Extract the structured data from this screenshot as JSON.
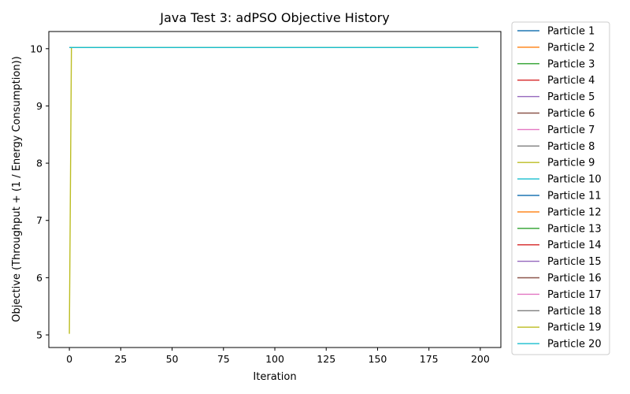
{
  "chart_data": {
    "type": "line",
    "title": "Java Test 3: adPSO Objective History",
    "xlabel": "Iteration",
    "ylabel": "Objective (Throughput + (1 / Energy Consumption))",
    "xlim": [
      -10,
      210
    ],
    "ylim": [
      4.78,
      10.3
    ],
    "xticks": [
      0,
      25,
      50,
      75,
      100,
      125,
      150,
      175,
      200
    ],
    "yticks": [
      5,
      6,
      7,
      8,
      9,
      10
    ],
    "grid": false,
    "legend_position": "outside-right",
    "x": [
      0,
      1,
      2,
      5,
      10,
      25,
      50,
      75,
      100,
      125,
      150,
      175,
      199
    ],
    "series": [
      {
        "name": "Particle 1",
        "color": "#1f77b4",
        "values": [
          10.02,
          10.02,
          10.02,
          10.02,
          10.02,
          10.02,
          10.02,
          10.02,
          10.02,
          10.02,
          10.02,
          10.02,
          10.02
        ]
      },
      {
        "name": "Particle 2",
        "color": "#ff7f0e",
        "values": [
          10.02,
          10.02,
          10.02,
          10.02,
          10.02,
          10.02,
          10.02,
          10.02,
          10.02,
          10.02,
          10.02,
          10.02,
          10.02
        ]
      },
      {
        "name": "Particle 3",
        "color": "#2ca02c",
        "values": [
          10.02,
          10.02,
          10.02,
          10.02,
          10.02,
          10.02,
          10.02,
          10.02,
          10.02,
          10.02,
          10.02,
          10.02,
          10.02
        ]
      },
      {
        "name": "Particle 4",
        "color": "#d62728",
        "values": [
          10.02,
          10.02,
          10.02,
          10.02,
          10.02,
          10.02,
          10.02,
          10.02,
          10.02,
          10.02,
          10.02,
          10.02,
          10.02
        ]
      },
      {
        "name": "Particle 5",
        "color": "#9467bd",
        "values": [
          10.02,
          10.02,
          10.02,
          10.02,
          10.02,
          10.02,
          10.02,
          10.02,
          10.02,
          10.02,
          10.02,
          10.02,
          10.02
        ]
      },
      {
        "name": "Particle 6",
        "color": "#8c564b",
        "values": [
          10.02,
          10.02,
          10.02,
          10.02,
          10.02,
          10.02,
          10.02,
          10.02,
          10.02,
          10.02,
          10.02,
          10.02,
          10.02
        ]
      },
      {
        "name": "Particle 7",
        "color": "#e377c2",
        "values": [
          10.02,
          10.02,
          10.02,
          10.02,
          10.02,
          10.02,
          10.02,
          10.02,
          10.02,
          10.02,
          10.02,
          10.02,
          10.02
        ]
      },
      {
        "name": "Particle 8",
        "color": "#7f7f7f",
        "values": [
          10.02,
          10.02,
          10.02,
          10.02,
          10.02,
          10.02,
          10.02,
          10.02,
          10.02,
          10.02,
          10.02,
          10.02,
          10.02
        ]
      },
      {
        "name": "Particle 9",
        "color": "#bcbd22",
        "values": [
          10.02,
          10.02,
          10.02,
          10.02,
          10.02,
          10.02,
          10.02,
          10.02,
          10.02,
          10.02,
          10.02,
          10.02,
          10.02
        ]
      },
      {
        "name": "Particle 10",
        "color": "#17becf",
        "values": [
          10.02,
          10.02,
          10.02,
          10.02,
          10.02,
          10.02,
          10.02,
          10.02,
          10.02,
          10.02,
          10.02,
          10.02,
          10.02
        ]
      },
      {
        "name": "Particle 11",
        "color": "#1f77b4",
        "values": [
          10.02,
          10.02,
          10.02,
          10.02,
          10.02,
          10.02,
          10.02,
          10.02,
          10.02,
          10.02,
          10.02,
          10.02,
          10.02
        ]
      },
      {
        "name": "Particle 12",
        "color": "#ff7f0e",
        "values": [
          10.02,
          10.02,
          10.02,
          10.02,
          10.02,
          10.02,
          10.02,
          10.02,
          10.02,
          10.02,
          10.02,
          10.02,
          10.02
        ]
      },
      {
        "name": "Particle 13",
        "color": "#2ca02c",
        "values": [
          10.02,
          10.02,
          10.02,
          10.02,
          10.02,
          10.02,
          10.02,
          10.02,
          10.02,
          10.02,
          10.02,
          10.02,
          10.02
        ]
      },
      {
        "name": "Particle 14",
        "color": "#d62728",
        "values": [
          10.02,
          10.02,
          10.02,
          10.02,
          10.02,
          10.02,
          10.02,
          10.02,
          10.02,
          10.02,
          10.02,
          10.02,
          10.02
        ]
      },
      {
        "name": "Particle 15",
        "color": "#9467bd",
        "values": [
          10.02,
          10.02,
          10.02,
          10.02,
          10.02,
          10.02,
          10.02,
          10.02,
          10.02,
          10.02,
          10.02,
          10.02,
          10.02
        ]
      },
      {
        "name": "Particle 16",
        "color": "#8c564b",
        "values": [
          10.02,
          10.02,
          10.02,
          10.02,
          10.02,
          10.02,
          10.02,
          10.02,
          10.02,
          10.02,
          10.02,
          10.02,
          10.02
        ]
      },
      {
        "name": "Particle 17",
        "color": "#e377c2",
        "values": [
          10.02,
          10.02,
          10.02,
          10.02,
          10.02,
          10.02,
          10.02,
          10.02,
          10.02,
          10.02,
          10.02,
          10.02,
          10.02
        ]
      },
      {
        "name": "Particle 18",
        "color": "#7f7f7f",
        "values": [
          10.02,
          10.02,
          10.02,
          10.02,
          10.02,
          10.02,
          10.02,
          10.02,
          10.02,
          10.02,
          10.02,
          10.02,
          10.02
        ]
      },
      {
        "name": "Particle 19",
        "color": "#bcbd22",
        "values": [
          5.02,
          10.02,
          10.02,
          10.02,
          10.02,
          10.02,
          10.02,
          10.02,
          10.02,
          10.02,
          10.02,
          10.02,
          10.02
        ]
      },
      {
        "name": "Particle 20",
        "color": "#17becf",
        "values": [
          10.02,
          10.02,
          10.02,
          10.02,
          10.02,
          10.02,
          10.02,
          10.02,
          10.02,
          10.02,
          10.02,
          10.02,
          10.02
        ]
      }
    ]
  }
}
